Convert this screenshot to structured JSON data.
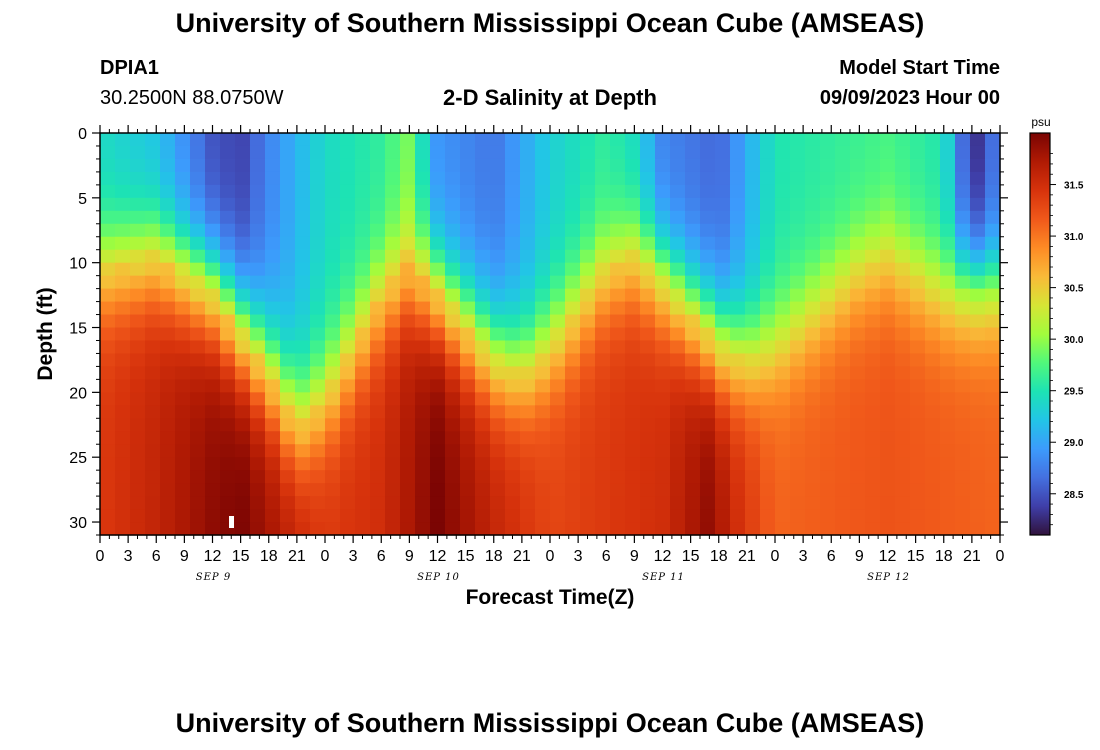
{
  "header": {
    "title": "University of Southern Mississippi Ocean Cube (AMSEAS)",
    "station": "DPIA1",
    "coords": "30.2500N  88.0750W",
    "subtitle": "2-D Salinity at Depth",
    "model_label": "Model Start Time",
    "model_time": "09/09/2023 Hour 00"
  },
  "footer": {
    "title": "University of Southern Mississippi Ocean Cube (AMSEAS)"
  },
  "colors": {
    "palette": [
      "#30123b",
      "#3f3ea8",
      "#4470e0",
      "#3c9bfc",
      "#22c5e6",
      "#1de3b4",
      "#51f87a",
      "#a2fc3c",
      "#d6e535",
      "#f9ba38",
      "#fd8b25",
      "#f0581a",
      "#d7330c",
      "#b01a04",
      "#7a0403"
    ]
  },
  "chart_data": {
    "type": "heatmap",
    "title": "2-D Salinity at Depth",
    "xlabel": "Forecast Time(Z)",
    "ylabel": "Depth (ft)",
    "units": "psu",
    "x_range_hours": [
      0,
      96
    ],
    "y_range_ft": [
      0,
      31
    ],
    "x_tick_labels": [
      "0",
      "3",
      "6",
      "9",
      "12",
      "15",
      "18",
      "21",
      "0",
      "3",
      "6",
      "9",
      "12",
      "15",
      "18",
      "21",
      "0",
      "3",
      "6",
      "9",
      "12",
      "15",
      "18",
      "21",
      "0",
      "3",
      "6",
      "9",
      "12",
      "15",
      "18",
      "21",
      "0"
    ],
    "y_ticks": [
      0,
      5,
      10,
      15,
      20,
      25,
      30
    ],
    "y_tick_labels": [
      "0",
      "5",
      "10",
      "15",
      "20",
      "25",
      "30"
    ],
    "day_labels": [
      {
        "label": "SEP 9",
        "hour": 12
      },
      {
        "label": "SEP 10",
        "hour": 36
      },
      {
        "label": "SEP 11",
        "hour": 60
      },
      {
        "label": "SEP 12",
        "hour": 84
      }
    ],
    "colorbar": {
      "min": 28.1,
      "max": 32.0,
      "tick_values": [
        28.5,
        29.0,
        29.5,
        30.0,
        30.5,
        31.0,
        31.5
      ],
      "tick_labels": [
        "28.5",
        "29.0",
        "29.5",
        "30.0",
        "30.5",
        "31.0",
        "31.5"
      ]
    },
    "halocline_depth_ft": [
      {
        "hour": 0,
        "depth": 11
      },
      {
        "hour": 6,
        "depth": 10
      },
      {
        "hour": 12,
        "depth": 13
      },
      {
        "hour": 18,
        "depth": 19
      },
      {
        "hour": 21,
        "depth": 23
      },
      {
        "hour": 24,
        "depth": 21
      },
      {
        "hour": 30,
        "depth": 13
      },
      {
        "hour": 33,
        "depth": 11
      },
      {
        "hour": 36,
        "depth": 13
      },
      {
        "hour": 42,
        "depth": 18
      },
      {
        "hour": 45,
        "depth": 19
      },
      {
        "hour": 48,
        "depth": 17
      },
      {
        "hour": 54,
        "depth": 11
      },
      {
        "hour": 57,
        "depth": 10
      },
      {
        "hour": 60,
        "depth": 12
      },
      {
        "hour": 66,
        "depth": 17
      },
      {
        "hour": 69,
        "depth": 18
      },
      {
        "hour": 72,
        "depth": 17
      },
      {
        "hour": 78,
        "depth": 13
      },
      {
        "hour": 81,
        "depth": 11
      },
      {
        "hour": 84,
        "depth": 10
      },
      {
        "hour": 90,
        "depth": 13
      },
      {
        "hour": 96,
        "depth": 13
      }
    ],
    "surface_salinity_psu": [
      {
        "hour": 0,
        "value": 29.4
      },
      {
        "hour": 6,
        "value": 29.2
      },
      {
        "hour": 12,
        "value": 28.5
      },
      {
        "hour": 15,
        "value": 28.4
      },
      {
        "hour": 18,
        "value": 28.8
      },
      {
        "hour": 24,
        "value": 29.4
      },
      {
        "hour": 30,
        "value": 29.6
      },
      {
        "hour": 33,
        "value": 29.9
      },
      {
        "hour": 36,
        "value": 28.9
      },
      {
        "hour": 42,
        "value": 28.7
      },
      {
        "hour": 48,
        "value": 29.3
      },
      {
        "hour": 54,
        "value": 29.6
      },
      {
        "hour": 57,
        "value": 29.4
      },
      {
        "hour": 60,
        "value": 28.8
      },
      {
        "hour": 66,
        "value": 28.6
      },
      {
        "hour": 72,
        "value": 29.5
      },
      {
        "hour": 78,
        "value": 29.6
      },
      {
        "hour": 84,
        "value": 29.7
      },
      {
        "hour": 90,
        "value": 29.5
      },
      {
        "hour": 93,
        "value": 28.2
      },
      {
        "hour": 96,
        "value": 28.8
      }
    ],
    "bottom_salinity_psu": [
      {
        "hour": 0,
        "value": 31.4
      },
      {
        "hour": 6,
        "value": 31.6
      },
      {
        "hour": 12,
        "value": 31.9
      },
      {
        "hour": 15,
        "value": 32.0
      },
      {
        "hour": 24,
        "value": 31.4
      },
      {
        "hour": 30,
        "value": 31.5
      },
      {
        "hour": 36,
        "value": 32.0
      },
      {
        "hour": 42,
        "value": 31.6
      },
      {
        "hour": 48,
        "value": 31.3
      },
      {
        "hour": 54,
        "value": 31.4
      },
      {
        "hour": 60,
        "value": 31.5
      },
      {
        "hour": 65,
        "value": 31.9
      },
      {
        "hour": 68,
        "value": 31.5
      },
      {
        "hour": 72,
        "value": 31.1
      },
      {
        "hour": 84,
        "value": 31.2
      },
      {
        "hour": 96,
        "value": 31.1
      }
    ]
  }
}
